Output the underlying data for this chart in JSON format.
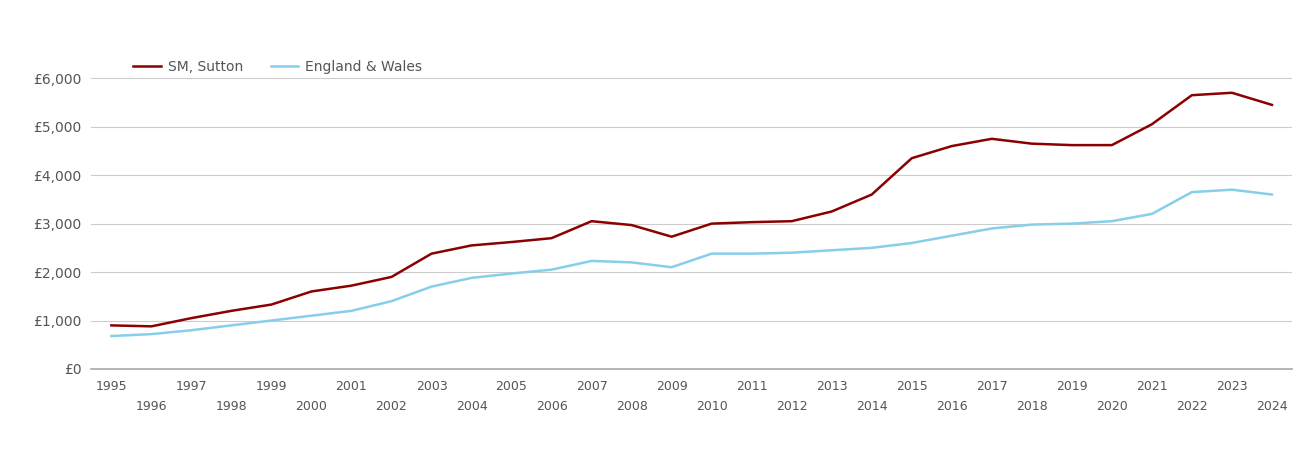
{
  "years": [
    1995,
    1996,
    1997,
    1998,
    1999,
    2000,
    2001,
    2002,
    2003,
    2004,
    2005,
    2006,
    2007,
    2008,
    2009,
    2010,
    2011,
    2012,
    2013,
    2014,
    2015,
    2016,
    2017,
    2018,
    2019,
    2020,
    2021,
    2022,
    2023,
    2024
  ],
  "sutton": [
    900,
    880,
    1050,
    1200,
    1330,
    1600,
    1720,
    1900,
    2380,
    2550,
    2620,
    2700,
    3050,
    2970,
    2730,
    3000,
    3030,
    3050,
    3250,
    3600,
    4350,
    4600,
    4750,
    4650,
    4620,
    4620,
    5050,
    5650,
    5700,
    5450
  ],
  "england_wales": [
    680,
    720,
    800,
    900,
    1000,
    1100,
    1200,
    1400,
    1700,
    1880,
    1970,
    2050,
    2230,
    2200,
    2100,
    2380,
    2380,
    2400,
    2450,
    2500,
    2600,
    2750,
    2900,
    2980,
    3000,
    3050,
    3200,
    3650,
    3700,
    3600
  ],
  "sutton_color": "#8B0000",
  "ew_color": "#87CEEB",
  "legend_labels": [
    "SM, Sutton",
    "England & Wales"
  ],
  "yticks": [
    0,
    1000,
    2000,
    3000,
    4000,
    5000,
    6000
  ],
  "ytick_labels": [
    "£0",
    "£1,000",
    "£2,000",
    "£3,000",
    "£4,000",
    "£5,000",
    "£6,000"
  ],
  "xticks_top": [
    1995,
    1997,
    1999,
    2001,
    2003,
    2005,
    2007,
    2009,
    2011,
    2013,
    2015,
    2017,
    2019,
    2021,
    2023
  ],
  "xticks_bottom": [
    1996,
    1998,
    2000,
    2002,
    2004,
    2006,
    2008,
    2010,
    2012,
    2014,
    2016,
    2018,
    2020,
    2022,
    2024
  ],
  "ylim": [
    0,
    6500
  ],
  "xlim": [
    1994.5,
    2024.5
  ],
  "background_color": "#ffffff",
  "grid_color": "#cccccc",
  "line_width": 1.8,
  "label_color": "#555555"
}
